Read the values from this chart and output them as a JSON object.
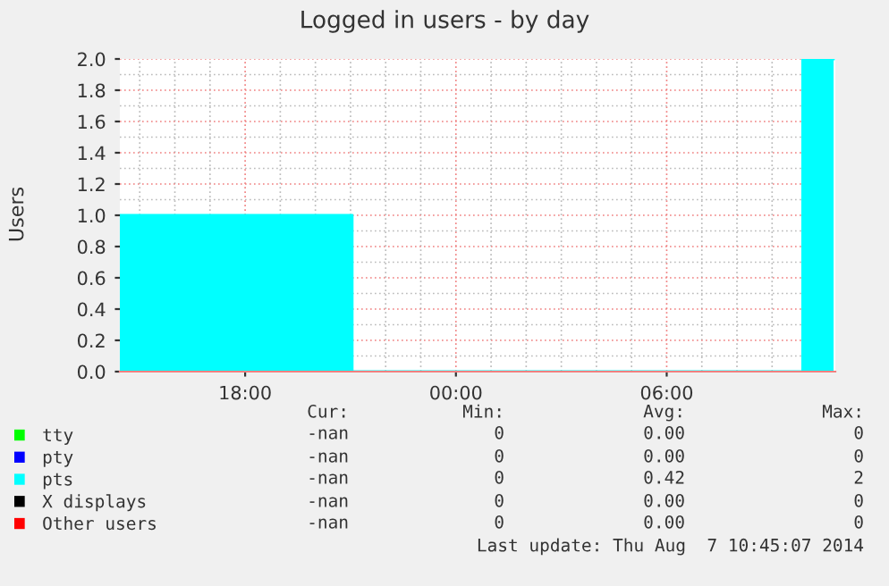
{
  "chart_data": {
    "type": "area",
    "title": "Logged in users - by day",
    "ylabel": "Users",
    "xlim": [
      "2014-08-06T14:26",
      "2014-08-07T10:48"
    ],
    "xticks": [
      {
        "value": "2014-08-06T18:00",
        "label": "18:00"
      },
      {
        "value": "2014-08-07T00:00",
        "label": "00:00"
      },
      {
        "value": "2014-08-07T06:00",
        "label": "06:00"
      }
    ],
    "ylim": [
      0,
      2
    ],
    "yticks": [
      {
        "value": 0,
        "label": "0.0"
      },
      0.2,
      0.4,
      0.6,
      0.8,
      {
        "value": 1,
        "label": "1.0"
      },
      1.2,
      1.4,
      1.6,
      1.8,
      {
        "value": 2,
        "label": "2.0"
      }
    ],
    "grid": true,
    "legend": "bottom",
    "x": [
      "2014-08-06T14:26",
      "2014-08-06T21:03",
      "2014-08-06T21:03",
      "2014-08-07T09:52",
      "2014-08-07T09:52",
      "2014-08-07T10:45"
    ],
    "series": [
      {
        "name": "tty",
        "color": "#00ff00",
        "values": [
          null,
          null,
          null,
          null,
          null,
          null
        ]
      },
      {
        "name": "pty",
        "color": "#0000ff",
        "values": [
          null,
          null,
          null,
          null,
          null,
          null
        ]
      },
      {
        "name": "pts",
        "color": "#00ffff",
        "values": [
          1,
          1,
          0,
          0,
          2,
          2
        ]
      },
      {
        "name": "X displays",
        "color": "#000000",
        "values": [
          null,
          null,
          null,
          null,
          null,
          null
        ]
      },
      {
        "name": "Other users",
        "color": "#ff0000",
        "values": [
          null,
          null,
          null,
          null,
          null,
          null
        ]
      }
    ],
    "annotations": [
      "Cur:",
      "Min:",
      "Avg:",
      "Max:",
      "-nan",
      "0",
      "0.00",
      "0",
      "-nan",
      "0",
      "0.00",
      "0",
      "-nan",
      "0",
      "0.42",
      "2",
      "-nan",
      "0",
      "0.00",
      "0",
      "-nan",
      "0",
      "0.00",
      "0",
      "Last update: Thu Aug  7 10:45:07 2014"
    ]
  }
}
